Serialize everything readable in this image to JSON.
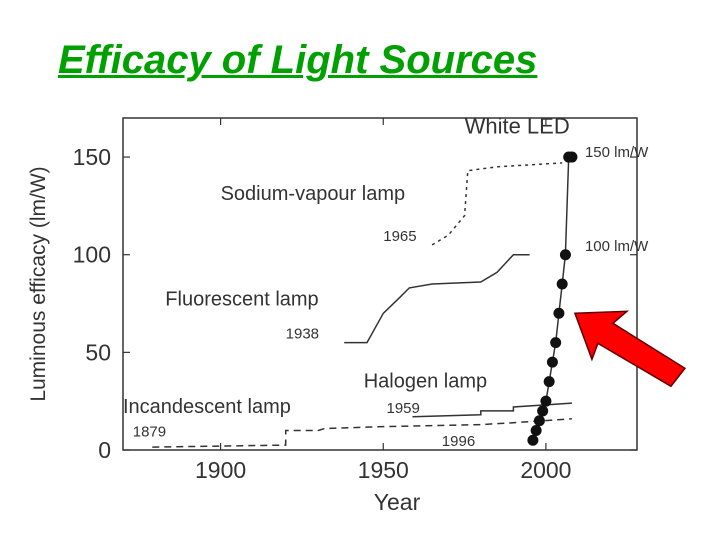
{
  "slide": {
    "title": "Efficacy of Light Sources"
  },
  "chart_data": {
    "type": "line",
    "xlabel": "Year",
    "ylabel": "Luminous efficacy (lm/W)",
    "xlim": [
      1870,
      2028
    ],
    "ylim": [
      0,
      170
    ],
    "xticks": [
      1900,
      1950,
      2000
    ],
    "yticks": [
      0,
      50,
      100,
      150
    ],
    "grid": false,
    "series": [
      {
        "name": "Incandescent lamp",
        "style": "dashed",
        "x": [
          1879,
          1920,
          1920,
          1930,
          1932,
          1950,
          1980,
          1990,
          2008
        ],
        "y": [
          1.5,
          2.5,
          10,
          10,
          11,
          12,
          13,
          14,
          16
        ]
      },
      {
        "name": "Halogen lamp",
        "style": "solid",
        "x": [
          1959,
          1980,
          1980,
          1990,
          1990,
          2008
        ],
        "y": [
          17,
          18,
          20,
          20,
          22,
          24
        ]
      },
      {
        "name": "Fluorescent lamp",
        "style": "solid",
        "x": [
          1938,
          1945,
          1950,
          1955,
          1958,
          1965,
          1980,
          1985,
          1990,
          1995
        ],
        "y": [
          55,
          55,
          70,
          78,
          83,
          85,
          86,
          91,
          100,
          100
        ]
      },
      {
        "name": "Sodium-vapour lamp",
        "style": "dotted",
        "x": [
          1965,
          1970,
          1975,
          1976,
          1985,
          2005
        ],
        "y": [
          105,
          110,
          120,
          143,
          145,
          147
        ]
      },
      {
        "name": "White LED",
        "style": "markers",
        "x": [
          1996,
          1997,
          1998,
          1999,
          2000,
          2001,
          2002,
          2003,
          2004,
          2005,
          2006,
          2007,
          2008
        ],
        "y": [
          5,
          10,
          15,
          20,
          25,
          35,
          45,
          55,
          70,
          85,
          100,
          150,
          150
        ]
      }
    ],
    "annotations": [
      {
        "text": "White LED",
        "x": 1975,
        "y": 162,
        "size": 22
      },
      {
        "text": "150 lm/W",
        "x": 2012,
        "y": 150,
        "size": 15
      },
      {
        "text": "100 lm/W",
        "x": 2012,
        "y": 102,
        "size": 15
      },
      {
        "text": "Sodium-vapour lamp",
        "x": 1900,
        "y": 128,
        "size": 20
      },
      {
        "text": "1965",
        "x": 1950,
        "y": 107,
        "size": 15
      },
      {
        "text": "Fluorescent lamp",
        "x": 1883,
        "y": 74,
        "size": 20
      },
      {
        "text": "1938",
        "x": 1920,
        "y": 57,
        "size": 15
      },
      {
        "text": "Halogen lamp",
        "x": 1944,
        "y": 32,
        "size": 20
      },
      {
        "text": "1959",
        "x": 1951,
        "y": 19,
        "size": 15
      },
      {
        "text": "Incandescent lamp",
        "x": 1870,
        "y": 19,
        "size": 20
      },
      {
        "text": "1879",
        "x": 1873,
        "y": 7,
        "size": 15
      },
      {
        "text": "1996",
        "x": 1968,
        "y": 2,
        "size": 15
      }
    ],
    "highlight_arrow": {
      "color": "#ff0000",
      "target_x": 2008,
      "target_y": 70
    }
  }
}
